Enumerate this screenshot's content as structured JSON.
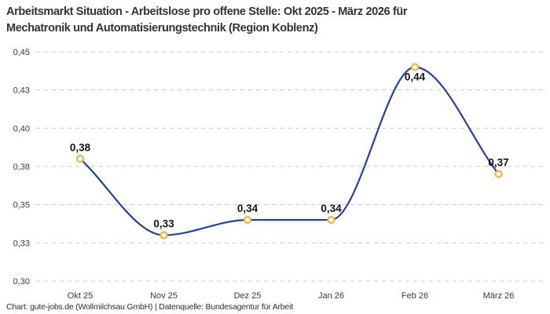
{
  "header": {
    "title_line1": "Arbeitsmarkt Situation - Arbeitslose pro offene Stelle: Okt 2025 - März 2026 für",
    "title_line2": "Mechatronik und Automatisierungstechnik (Region Koblenz)"
  },
  "footer": {
    "credit": "Chart: gute-jobs.de (Wollmilchsau GmbH) | Datenquelle: Bundesagentur für Arbeit"
  },
  "colors": {
    "background": "#ffffff",
    "line": "#2441a0",
    "marker_ring": "#f2b632",
    "marker_fill": "#ffffff",
    "grid": "#c9c9c9",
    "title_text": "#333333",
    "tick_text": "#3a3a3a",
    "value_label_text": "#141414",
    "footer_text": "#2e2e2e"
  },
  "chart_data": {
    "type": "line",
    "title": "Arbeitsmarkt Situation - Arbeitslose pro offene Stelle: Okt 2025 - März 2026 für Mechatronik und Automatisierungstechnik (Region Koblenz)",
    "categories": [
      "Okt 25",
      "Nov 25",
      "Dez 25",
      "Jan 26",
      "Feb 26",
      "März 26"
    ],
    "series": [
      {
        "name": "Arbeitslose pro offene Stelle",
        "values": [
          0.38,
          0.33,
          0.34,
          0.34,
          0.44,
          0.37
        ]
      }
    ],
    "point_labels": [
      "0,38",
      "0,33",
      "0,34",
      "0,34",
      "0,44",
      "0,37"
    ],
    "point_label_positions": [
      "above",
      "above",
      "above",
      "above",
      "below",
      "above"
    ],
    "y_ticks": [
      0.3,
      0.325,
      0.35,
      0.375,
      0.4,
      0.425,
      0.45
    ],
    "y_tick_labels": [
      "0,30",
      "0,33",
      "0,35",
      "0,38",
      "0,40",
      "0,43",
      "0,45"
    ],
    "ylim": [
      0.3,
      0.45
    ],
    "xlabel": "",
    "ylabel": "",
    "grid": "horizontal-dashed",
    "legend": "none",
    "line_style": "smooth-monotone",
    "marker": "circle-open"
  }
}
